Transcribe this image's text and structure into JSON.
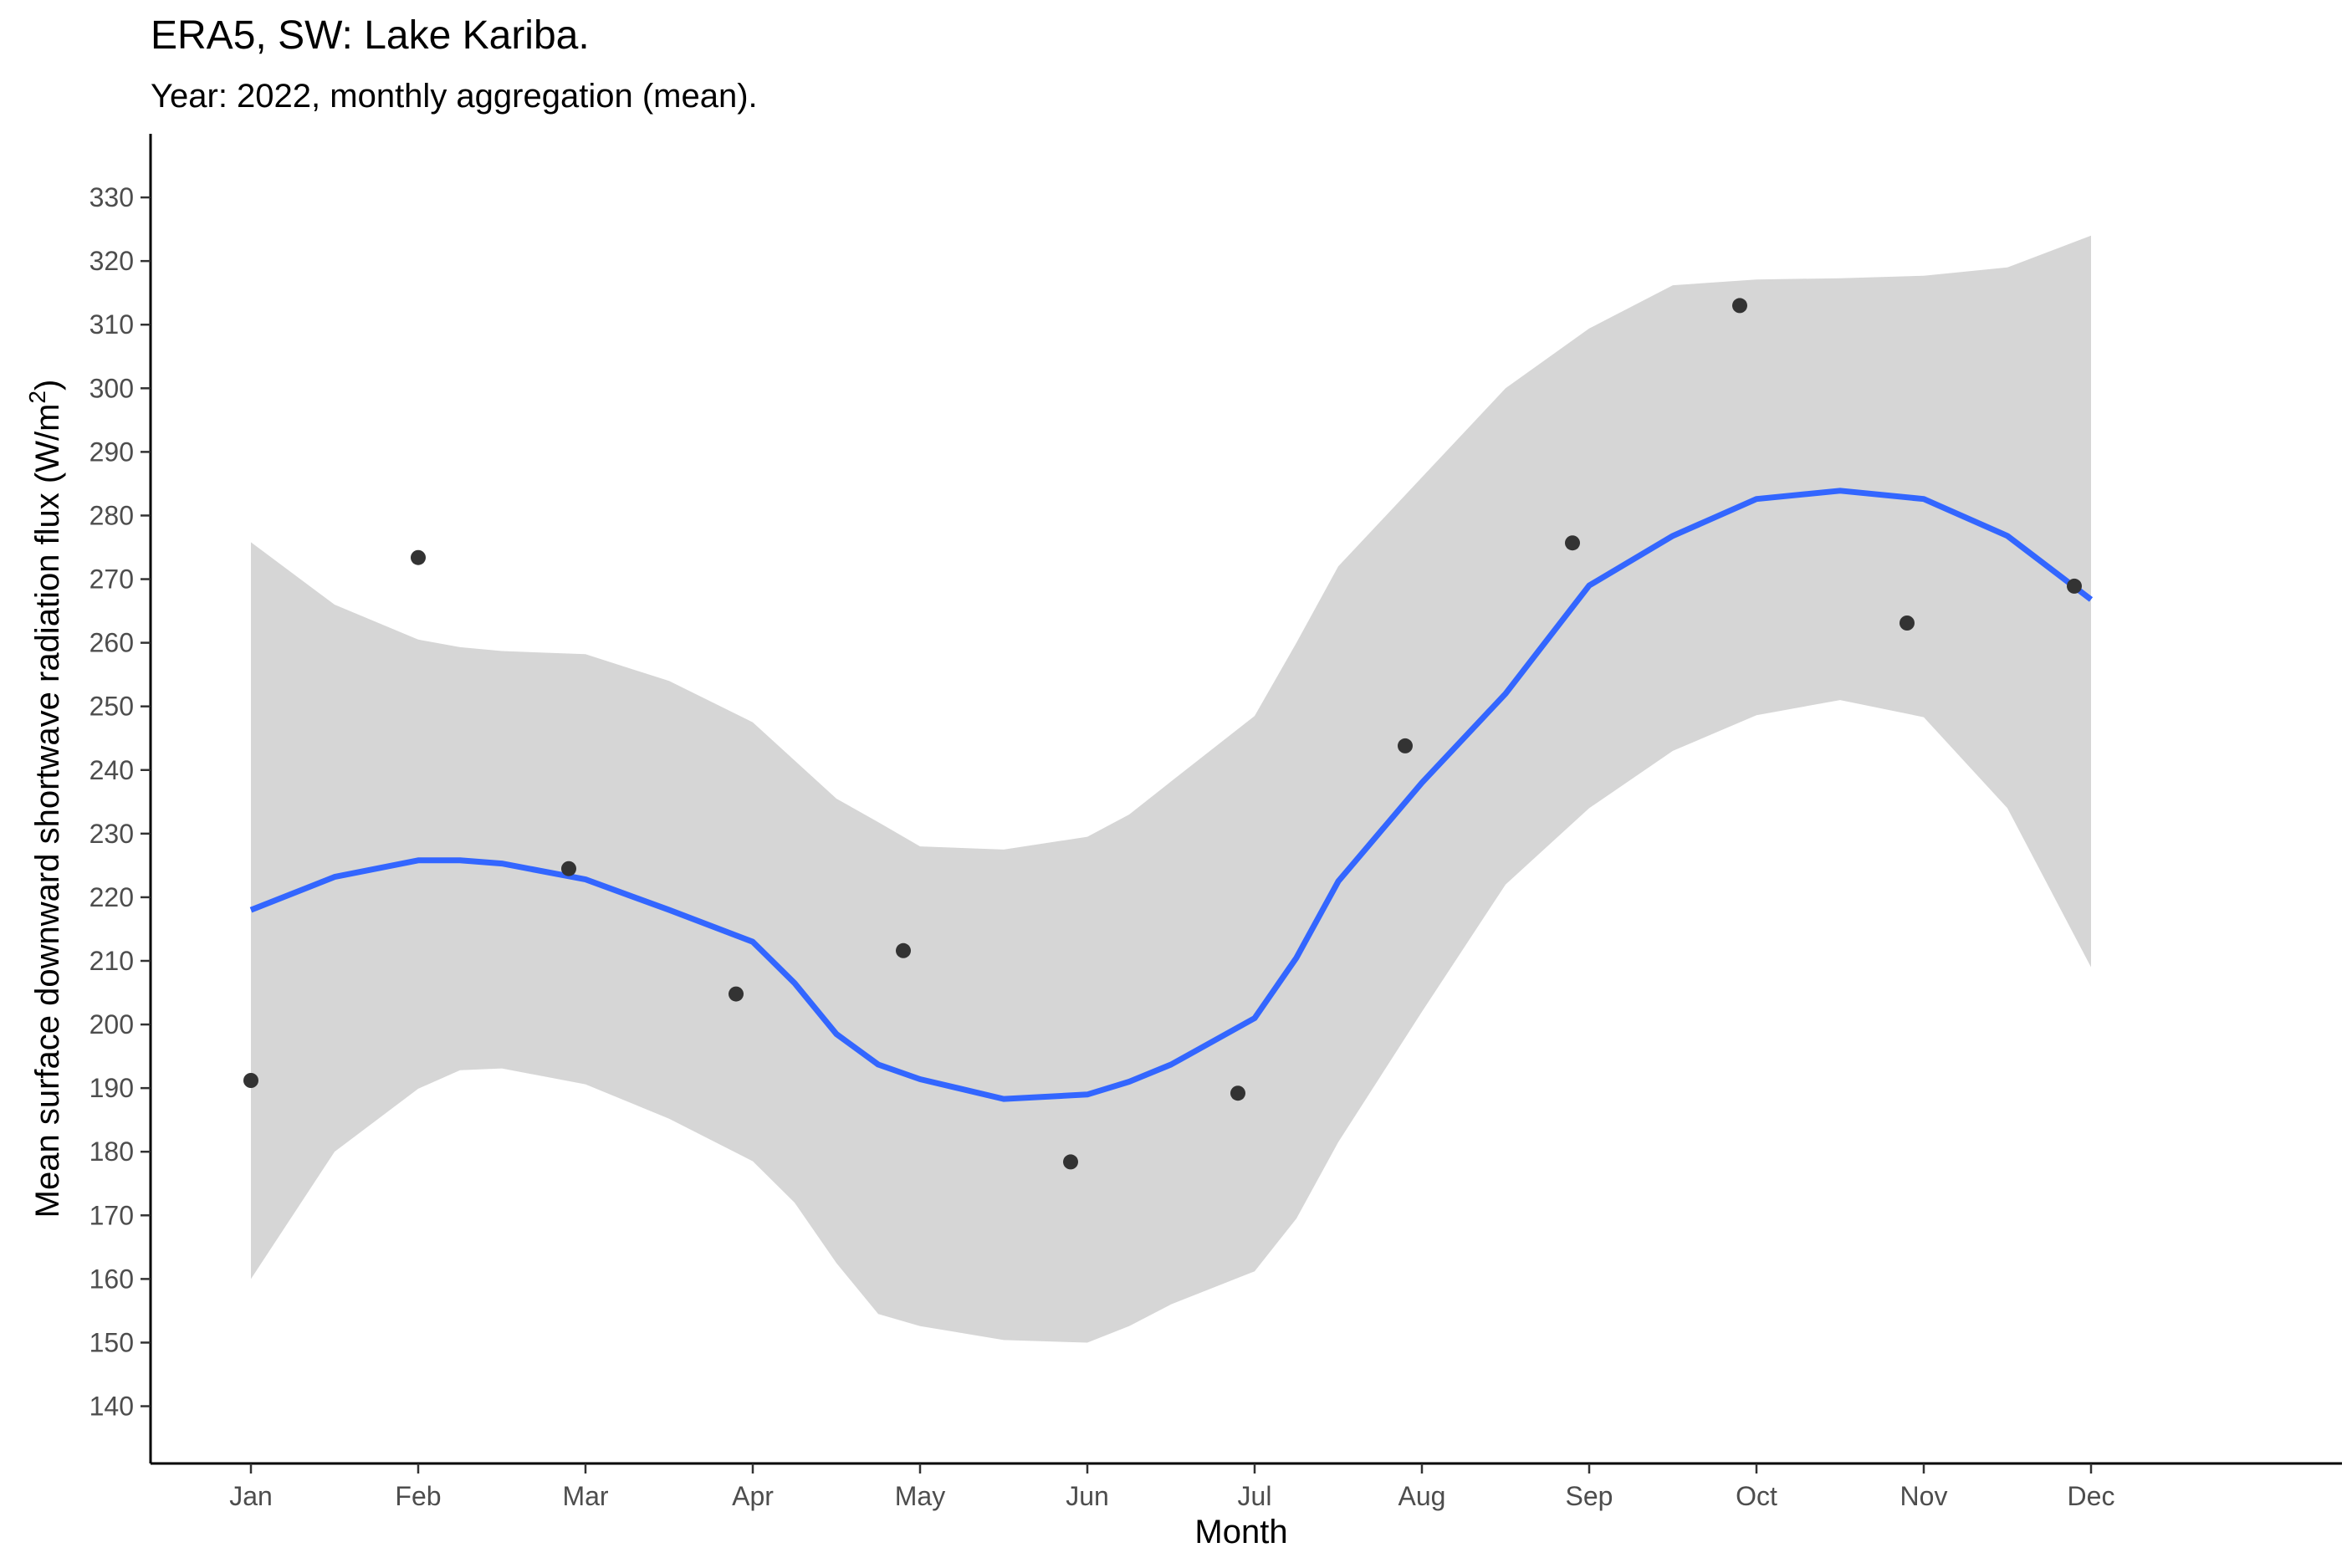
{
  "chart_data": {
    "type": "scatter",
    "title": "ERA5, SW: Lake Kariba.",
    "subtitle": "Year: 2022, monthly aggregation (mean).",
    "xlabel": "Month",
    "ylabel_main": "Mean surface downward shortwave radiation flux (W/m",
    "ylabel_sup": "2",
    "ylabel_close": ")",
    "categories": [
      "Jan",
      "Feb",
      "Mar",
      "Apr",
      "May",
      "Jun",
      "Jul",
      "Aug",
      "Sep",
      "Oct",
      "Nov",
      "Dec"
    ],
    "x_ticks_pos": [
      0,
      1,
      2,
      3,
      4,
      5,
      6,
      7,
      8,
      9,
      10,
      11
    ],
    "x_tick_labels": [
      "Jan",
      "Feb",
      "Mar",
      "Apr",
      "May",
      "Jun",
      "Jul",
      "Aug",
      "Sep",
      "Oct",
      "Nov",
      "Dec"
    ],
    "xlim": [
      -0.6,
      12.5
    ],
    "ylim": [
      131,
      340
    ],
    "y_ticks": [
      140,
      150,
      160,
      170,
      180,
      190,
      200,
      210,
      220,
      230,
      240,
      250,
      260,
      270,
      280,
      290,
      300,
      310,
      320,
      330
    ],
    "grid": false,
    "point_color": "#333333",
    "line_color": "#3366FF",
    "band_color": "#d6d6d6",
    "points": [
      {
        "x": 0,
        "label": "Jan",
        "y": 191.2
      },
      {
        "x": 1,
        "label": "Feb",
        "y": 273.4
      },
      {
        "x": 1.9,
        "label": "Mar",
        "y": 224.5
      },
      {
        "x": 2.9,
        "label": "Apr",
        "y": 204.8
      },
      {
        "x": 3.9,
        "label": "May",
        "y": 211.6
      },
      {
        "x": 4.9,
        "label": "Jun",
        "y": 178.4
      },
      {
        "x": 5.9,
        "label": "Jul",
        "y": 189.2
      },
      {
        "x": 6.9,
        "label": "Aug",
        "y": 243.8
      },
      {
        "x": 7.9,
        "label": "Sep",
        "y": 275.7
      },
      {
        "x": 8.9,
        "label": "Oct",
        "y": 313.0
      },
      {
        "x": 9.9,
        "label": "Nov",
        "y": 263.1
      },
      {
        "x": 10.9,
        "label": "Dec",
        "y": 268.9
      }
    ],
    "smooth": {
      "x": [
        0,
        0.5,
        1,
        1.25,
        1.5,
        2,
        2.5,
        3,
        3.25,
        3.5,
        3.75,
        4,
        4.5,
        5,
        5.25,
        5.5,
        6,
        6.25,
        6.5,
        7,
        7.5,
        8,
        8.5,
        9,
        9.5,
        10,
        10.5,
        11
      ],
      "y": [
        218.0,
        223.2,
        225.8,
        225.8,
        225.3,
        222.8,
        218.0,
        213.0,
        206.5,
        198.5,
        193.7,
        191.4,
        188.3,
        189.0,
        191.0,
        193.7,
        201.0,
        210.5,
        222.5,
        238.0,
        252.0,
        269.0,
        276.8,
        282.6,
        283.9,
        282.6,
        276.8,
        266.8
      ],
      "lower": [
        160.0,
        180.0,
        189.9,
        192.8,
        193.1,
        190.6,
        185.2,
        178.5,
        172.0,
        162.5,
        154.5,
        152.6,
        150.4,
        150.0,
        152.6,
        156.0,
        161.2,
        169.5,
        181.5,
        202.0,
        222.0,
        234.0,
        243.0,
        248.6,
        251.0,
        248.3,
        234.0,
        209.0
      ],
      "upper": [
        275.8,
        266.0,
        260.5,
        259.3,
        258.7,
        258.2,
        254.0,
        247.5,
        241.5,
        235.5,
        231.8,
        228.0,
        227.5,
        229.5,
        233.0,
        238.2,
        248.5,
        260.0,
        272.0,
        286.0,
        300.0,
        309.4,
        316.2,
        317.1,
        317.3,
        317.7,
        319.0,
        324.0
      ]
    }
  }
}
